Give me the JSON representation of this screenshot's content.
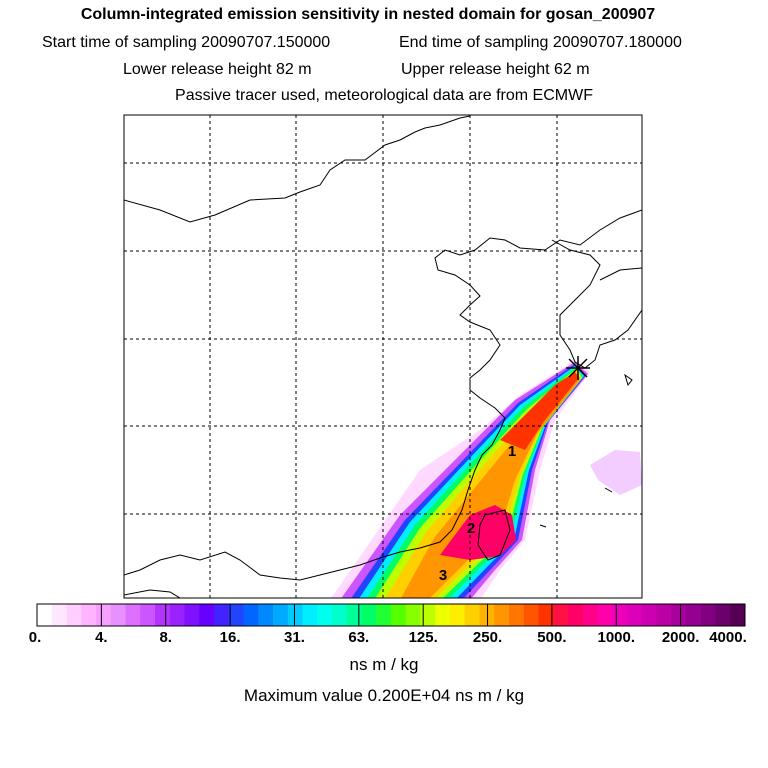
{
  "header": {
    "title": "Column-integrated emission sensitivity in nested domain for gosan_200907",
    "start_time": "Start time of sampling 20090707.150000",
    "end_time": "End time of sampling 20090707.180000",
    "lower_release": "Lower release height   82 m",
    "upper_release": "Upper release height   62 m",
    "tracer_note": "Passive tracer used, meteorological data are from ECMWF"
  },
  "map": {
    "station_marker": "gosan-station-star",
    "region_labels": [
      "1",
      "2",
      "3"
    ]
  },
  "legend": {
    "tick_labels": [
      "0.",
      "4.",
      "8.",
      "16.",
      "31.",
      "63.",
      "125.",
      "250.",
      "500.",
      "1000.",
      "2000.",
      "4000."
    ],
    "colors": [
      "#ffffff",
      "#ffe8ff",
      "#ffd0ff",
      "#ffb4ff",
      "#f7a0ff",
      "#e890ff",
      "#dd70ff",
      "#cc55ff",
      "#b533ff",
      "#9a22ff",
      "#7f11ff",
      "#6600ff",
      "#4422ff",
      "#2244ff",
      "#0066ff",
      "#0088ff",
      "#00aaff",
      "#00ccff",
      "#00eeff",
      "#00ffee",
      "#00ffcc",
      "#00ff99",
      "#00ff66",
      "#22ff33",
      "#55ff00",
      "#88ff00",
      "#bbff00",
      "#eeff00",
      "#ffee00",
      "#ffd000",
      "#ffb300",
      "#ff9500",
      "#ff7700",
      "#ff5500",
      "#ff3300",
      "#ff1144",
      "#ff0066",
      "#ff0088",
      "#ff00aa",
      "#ee00bb",
      "#dd00bb",
      "#cc00b0",
      "#bb00a5",
      "#a8009a",
      "#950090",
      "#800080",
      "#6a006a",
      "#550055"
    ],
    "units": "ns m / kg",
    "maximum": "Maximum value  0.200E+04 ns m / kg"
  }
}
